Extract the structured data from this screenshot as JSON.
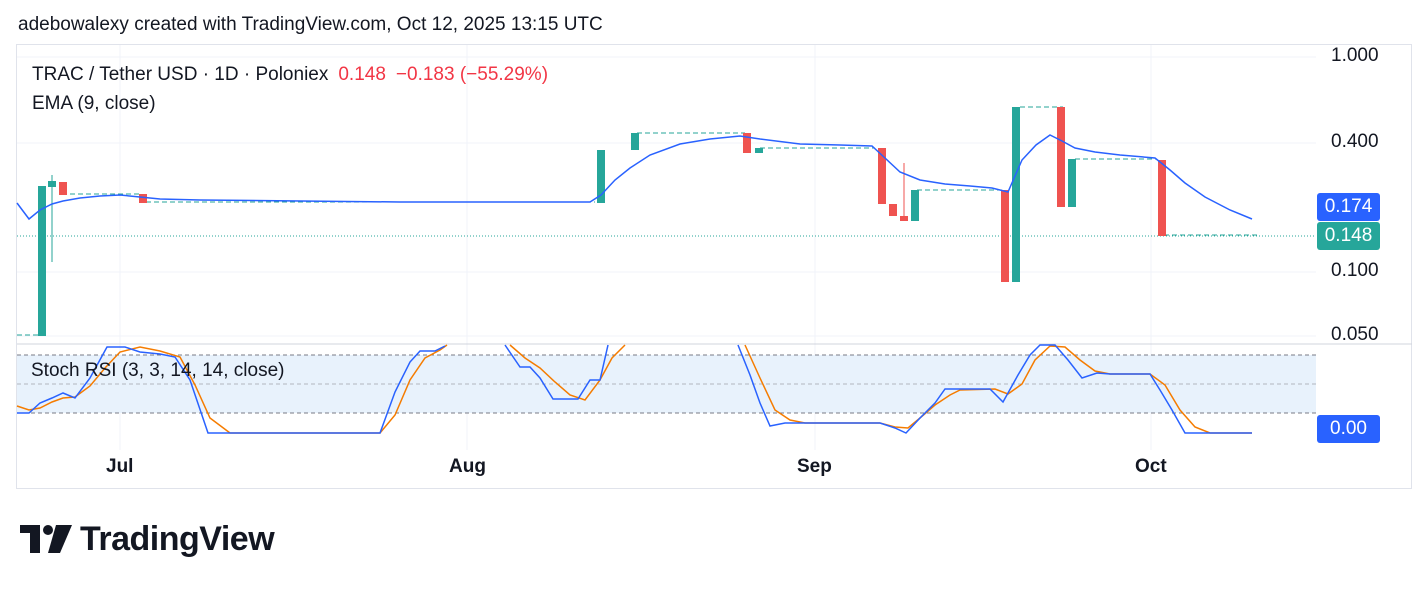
{
  "header": {
    "attribution": "adebowalexy created with TradingView.com, Oct 12, 2025 13:15 UTC"
  },
  "legend": {
    "symbol": "TRAC / Tether USD · 1D · Poloniex",
    "last_price": "0.148",
    "change": "−0.183 (−55.29%)",
    "indicator": "EMA (9, close)"
  },
  "stoch": {
    "label": "Stoch RSI (3, 3, 14, 14, close)",
    "value_tag": "0.00"
  },
  "price_axis": {
    "ticks": [
      "1.000",
      "0.400",
      "0.100",
      "0.050"
    ],
    "ema_tag": "0.174",
    "price_tag": "0.148"
  },
  "time_axis": {
    "ticks": [
      "Jul",
      "Aug",
      "Sep",
      "Oct"
    ]
  },
  "brand": {
    "name": "TradingView"
  },
  "colors": {
    "up": "#26a69a",
    "down": "#ef5350",
    "ema": "#2962ff",
    "stoch_k": "#2962ff",
    "stoch_d": "#f57c00",
    "stoch_band": "#e3effd"
  }
}
